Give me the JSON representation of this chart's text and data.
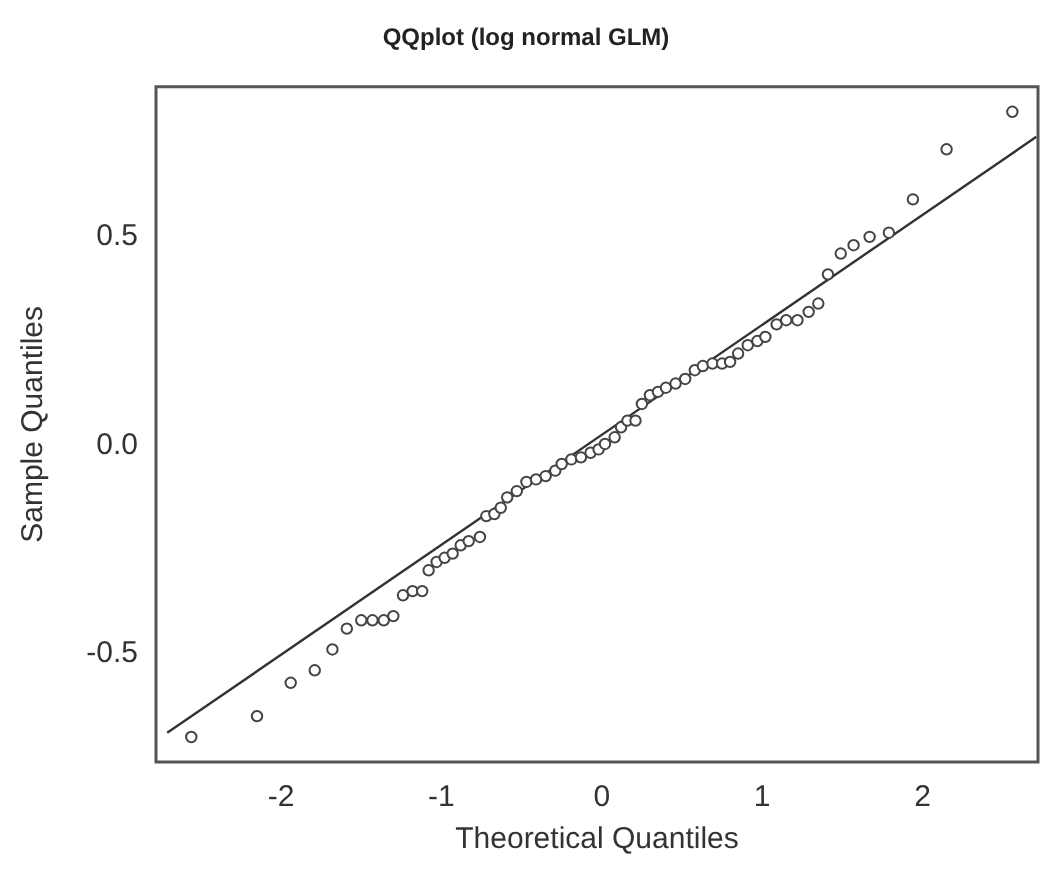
{
  "chart_data": {
    "type": "scatter",
    "title": "QQplot (log normal GLM)",
    "xlabel": "Theoretical Quantiles",
    "ylabel": "Sample Quantiles",
    "xlim": [
      -2.78,
      2.72
    ],
    "ylim": [
      -0.76,
      0.86
    ],
    "xticks": [
      -2,
      -1,
      0,
      1,
      2
    ],
    "yticks": [
      -0.5,
      {
        "value": 0,
        "label": "0.0"
      },
      0.5
    ],
    "grid": false,
    "legend": false,
    "marker": "circle",
    "series": [
      {
        "type": "scatter",
        "color": "#444444",
        "x": [
          -2.56,
          -2.15,
          -1.94,
          -1.79,
          -1.68,
          -1.59,
          -1.5,
          -1.43,
          -1.36,
          -1.3,
          -1.24,
          -1.18,
          -1.12,
          -1.08,
          -1.03,
          -0.98,
          -0.93,
          -0.88,
          -0.83,
          -0.76,
          -0.72,
          -0.67,
          -0.63,
          -0.59,
          -0.53,
          -0.47,
          -0.41,
          -0.35,
          -0.29,
          -0.25,
          -0.19,
          -0.13,
          -0.07,
          -0.02,
          0.02,
          0.08,
          0.12,
          0.16,
          0.21,
          0.25,
          0.3,
          0.35,
          0.4,
          0.46,
          0.52,
          0.58,
          0.63,
          0.69,
          0.75,
          0.8,
          0.85,
          0.91,
          0.97,
          1.02,
          1.09,
          1.15,
          1.22,
          1.29,
          1.35,
          1.41,
          1.49,
          1.57,
          1.67,
          1.79,
          1.94,
          2.15,
          2.56
        ],
        "values": [
          -0.7,
          -0.65,
          -0.57,
          -0.54,
          -0.49,
          -0.44,
          -0.42,
          -0.42,
          -0.42,
          -0.41,
          -0.36,
          -0.35,
          -0.35,
          -0.3,
          -0.28,
          -0.27,
          -0.26,
          -0.24,
          -0.23,
          -0.22,
          -0.17,
          -0.165,
          -0.15,
          -0.125,
          -0.11,
          -0.088,
          -0.082,
          -0.074,
          -0.061,
          -0.045,
          -0.034,
          -0.029,
          -0.018,
          -0.01,
          0.003,
          0.019,
          0.043,
          0.059,
          0.059,
          0.099,
          0.12,
          0.128,
          0.138,
          0.148,
          0.159,
          0.18,
          0.19,
          0.196,
          0.196,
          0.2,
          0.22,
          0.24,
          0.25,
          0.26,
          0.29,
          0.3,
          0.3,
          0.32,
          0.34,
          0.41,
          0.46,
          0.48,
          0.5,
          0.51,
          0.59,
          0.71,
          0.8
        ]
      },
      {
        "type": "line",
        "color": "#333333",
        "marker": "none",
        "line_style": "solid",
        "x": [
          -2.71,
          2.71
        ],
        "values": [
          -0.69,
          0.74
        ]
      }
    ]
  }
}
